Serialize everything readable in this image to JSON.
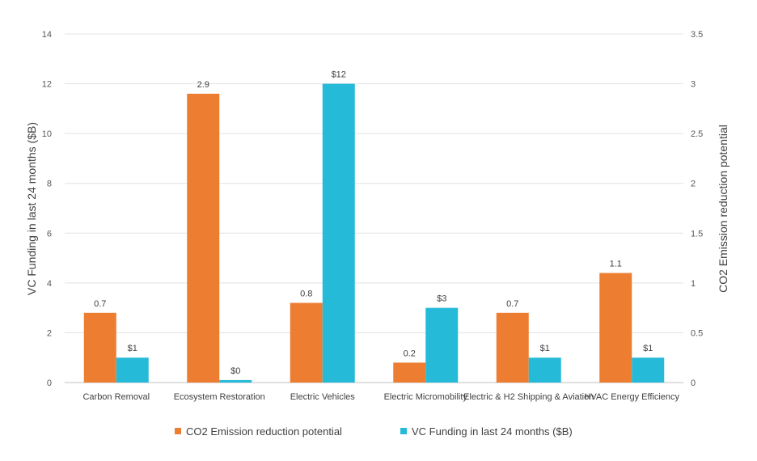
{
  "chart_data": {
    "type": "bar",
    "categories": [
      "Carbon Removal",
      "Ecosystem Restoration",
      "Electric Vehicles",
      "Electric Micromobility",
      "Electric & H2 Shipping & Aviation",
      "HVAC Energy Efficiency"
    ],
    "series": [
      {
        "name": "CO2 Emission reduction potential",
        "axis": "right",
        "color": "#ED7D31",
        "values": [
          0.7,
          2.9,
          0.8,
          0.2,
          0.7,
          1.1
        ],
        "labels": [
          "0.7",
          "2.9",
          "0.8",
          "0.2",
          "0.7",
          "1.1"
        ]
      },
      {
        "name": "VC Funding in last 24 months ($B)",
        "axis": "left",
        "color": "#26BAD9",
        "values": [
          1,
          0.1,
          12,
          3,
          1,
          1
        ],
        "labels": [
          "$1",
          "$0",
          "$12",
          "$3",
          "$1",
          "$1"
        ]
      }
    ],
    "ylabel_left": "VC Funding in last 24 months ($B)",
    "ylabel_right": "CO2 Emission reduction potential",
    "ylim_left": [
      0,
      14
    ],
    "yticks_left": [
      "0",
      "2",
      "4",
      "6",
      "8",
      "10",
      "12",
      "14"
    ],
    "ylim_right": [
      0,
      3.5
    ],
    "yticks_right": [
      "0",
      "0.5",
      "1",
      "1.5",
      "2",
      "2.5",
      "3",
      "3.5"
    ],
    "grid": true,
    "legend_position": "bottom"
  }
}
